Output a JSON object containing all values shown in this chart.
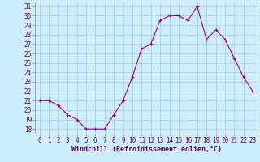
{
  "x": [
    0,
    1,
    2,
    3,
    4,
    5,
    6,
    7,
    8,
    9,
    10,
    11,
    12,
    13,
    14,
    15,
    16,
    17,
    18,
    19,
    20,
    21,
    22,
    23
  ],
  "y": [
    21,
    21,
    20.5,
    19.5,
    19,
    18,
    18,
    18,
    19.5,
    21,
    23.5,
    26.5,
    27,
    29.5,
    30,
    30,
    29.5,
    31,
    27.5,
    28.5,
    27.5,
    25.5,
    23.5,
    22
  ],
  "xlim": [
    -0.5,
    23.5
  ],
  "ylim": [
    17.5,
    31.5
  ],
  "yticks": [
    18,
    19,
    20,
    21,
    22,
    23,
    24,
    25,
    26,
    27,
    28,
    29,
    30,
    31
  ],
  "xticks": [
    0,
    1,
    2,
    3,
    4,
    5,
    6,
    7,
    8,
    9,
    10,
    11,
    12,
    13,
    14,
    15,
    16,
    17,
    18,
    19,
    20,
    21,
    22,
    23
  ],
  "xlabel": "Windchill (Refroidissement éolien,°C)",
  "line_color": "#990099",
  "marker": "+",
  "bg_color": "#cceeff",
  "grid_color": "#b0c8d8",
  "label_color": "#660066",
  "tick_fontsize": 5.5,
  "xlabel_fontsize": 6.0
}
